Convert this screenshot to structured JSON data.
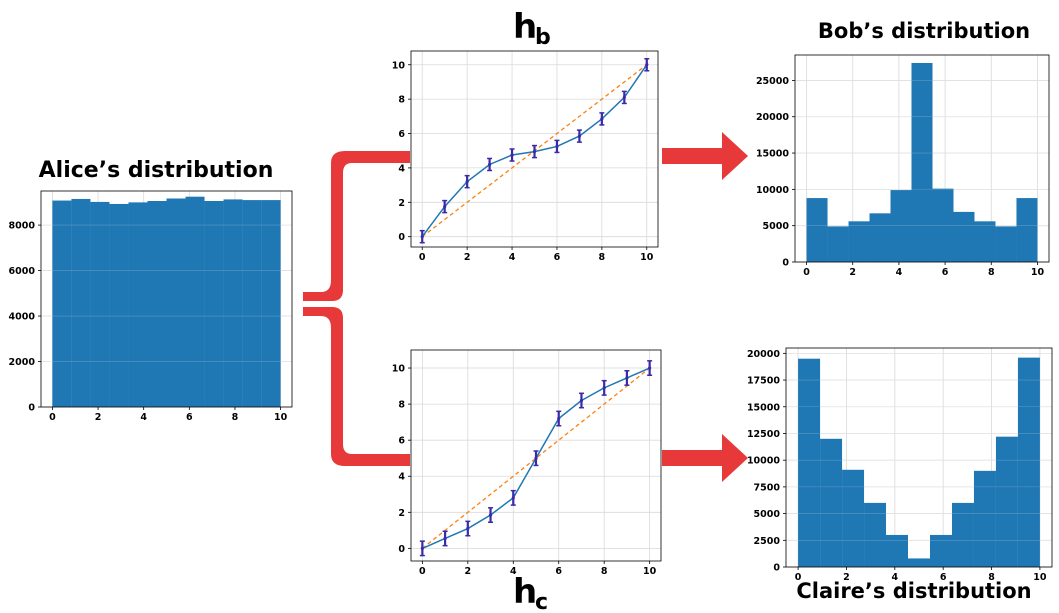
{
  "colors": {
    "bar": "#1f77b4",
    "curve": "#1f77b4",
    "errorbar": "#3b2aa8",
    "identity": "#ff7f0e",
    "arrow": "#e8393a",
    "grid": "#d9d9d9"
  },
  "labels": {
    "alice_title": "Alice’s distribution",
    "bob_title": "Bob’s distribution",
    "claire_title": "Claire’s distribution",
    "hb_main": "h",
    "hb_sub": "b",
    "hc_main": "h",
    "hc_sub": "c"
  },
  "chart_data": [
    {
      "id": "alice",
      "type": "bar",
      "title": "Alice’s distribution",
      "bin_edges": [
        0,
        0.833,
        1.667,
        2.5,
        3.333,
        4.167,
        5.0,
        5.833,
        6.667,
        7.5,
        8.333,
        9.167,
        10
      ],
      "values": [
        9080,
        9150,
        9020,
        8930,
        9000,
        9060,
        9170,
        9250,
        9060,
        9130,
        9100,
        9100
      ],
      "xlim": [
        -0.5,
        10.5
      ],
      "ylim": [
        0,
        9500
      ],
      "xticks": [
        0,
        2,
        4,
        6,
        8,
        10
      ],
      "yticks": [
        0,
        2000,
        4000,
        6000,
        8000
      ],
      "grid": true
    },
    {
      "id": "hb",
      "type": "line",
      "title": "h_b",
      "x": [
        0,
        1,
        2,
        3,
        4,
        5,
        6,
        7,
        8,
        9,
        10
      ],
      "y": [
        0,
        1.75,
        3.2,
        4.2,
        4.75,
        4.95,
        5.25,
        5.85,
        6.85,
        8.1,
        10.0
      ],
      "yerr": [
        0.35,
        0.35,
        0.35,
        0.35,
        0.35,
        0.35,
        0.35,
        0.35,
        0.35,
        0.35,
        0.35
      ],
      "reference_line": [
        [
          0,
          0
        ],
        [
          10,
          10
        ]
      ],
      "xlim": [
        -0.5,
        10.5
      ],
      "ylim": [
        -0.6,
        10.8
      ],
      "xticks": [
        0,
        2,
        4,
        6,
        8,
        10
      ],
      "yticks": [
        0,
        2,
        4,
        6,
        8,
        10
      ],
      "grid": true
    },
    {
      "id": "hc",
      "type": "line",
      "title": "h_c",
      "x": [
        0,
        1,
        2,
        3,
        4,
        5,
        6,
        7,
        8,
        9,
        10
      ],
      "y": [
        0,
        0.55,
        1.1,
        1.85,
        2.8,
        5.0,
        7.2,
        8.2,
        8.9,
        9.45,
        10.0
      ],
      "yerr": [
        0.4,
        0.4,
        0.4,
        0.4,
        0.4,
        0.4,
        0.4,
        0.4,
        0.4,
        0.4,
        0.4
      ],
      "reference_line": [
        [
          0,
          0
        ],
        [
          10,
          10
        ]
      ],
      "xlim": [
        -0.5,
        10.5
      ],
      "ylim": [
        -0.7,
        11.0
      ],
      "xticks": [
        0,
        2,
        4,
        6,
        8,
        10
      ],
      "yticks": [
        0,
        2,
        4,
        6,
        8,
        10
      ],
      "grid": true
    },
    {
      "id": "bob",
      "type": "bar",
      "title": "Bob’s distribution",
      "bin_edges": [
        0,
        0.909,
        1.818,
        2.727,
        3.636,
        4.545,
        5.455,
        6.364,
        7.273,
        8.182,
        9.091,
        10
      ],
      "values": [
        8800,
        4900,
        5600,
        6700,
        9900,
        27400,
        10100,
        6900,
        5600,
        4900,
        8800
      ],
      "xlim": [
        -0.5,
        10.5
      ],
      "ylim": [
        0,
        28500
      ],
      "xticks": [
        0,
        2,
        4,
        6,
        8,
        10
      ],
      "yticks": [
        0,
        5000,
        10000,
        15000,
        20000,
        25000
      ],
      "grid": true
    },
    {
      "id": "claire",
      "type": "bar",
      "title": "Claire’s distribution",
      "bin_edges": [
        0,
        0.909,
        1.818,
        2.727,
        3.636,
        4.545,
        5.455,
        6.364,
        7.273,
        8.182,
        9.091,
        10
      ],
      "values": [
        19500,
        12000,
        9100,
        6000,
        3000,
        800,
        3000,
        6000,
        9000,
        12200,
        19600
      ],
      "xlim": [
        -0.5,
        10.5
      ],
      "ylim": [
        0,
        20500
      ],
      "xticks": [
        0,
        2,
        4,
        6,
        8,
        10
      ],
      "yticks": [
        0,
        2500,
        5000,
        7500,
        10000,
        12500,
        15000,
        17500,
        20000
      ],
      "grid": true
    }
  ]
}
